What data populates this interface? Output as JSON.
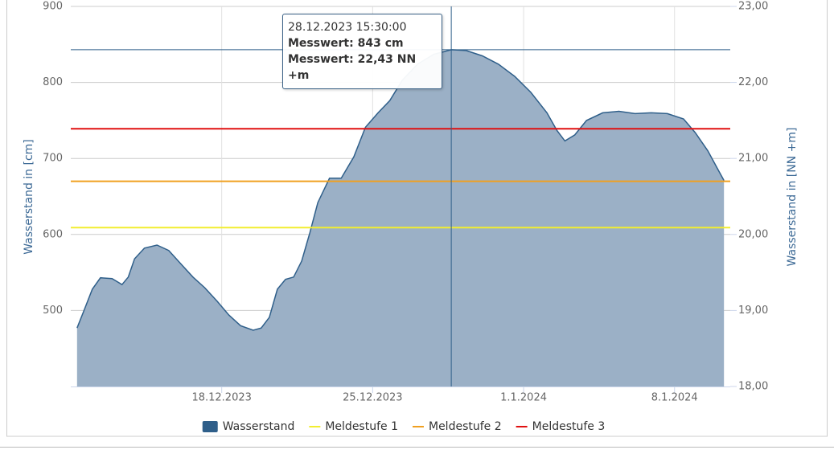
{
  "chart_data": {
    "type": "area",
    "ylabel": "Wasserstand in [cm]",
    "y2label": "Wasserstand in [NN +m]",
    "xlim": [
      "2023-12-11T00:00",
      "2024-01-10T14:00"
    ],
    "xticks": [
      {
        "value": "2023-12-18T00:00",
        "label": "18.12.2023"
      },
      {
        "value": "2023-12-25T00:00",
        "label": "25.12.2023"
      },
      {
        "value": "2024-01-01T00:00",
        "label": "1.1.2024"
      },
      {
        "value": "2024-01-08T00:00",
        "label": "8.1.2024"
      }
    ],
    "ylim": [
      400,
      900
    ],
    "yticks": [
      500,
      600,
      700,
      800,
      900
    ],
    "y2lim": [
      18,
      23
    ],
    "y2ticks": [
      {
        "value": 18,
        "label": "18,00"
      },
      {
        "value": 19,
        "label": "19,00"
      },
      {
        "value": 20,
        "label": "20,00"
      },
      {
        "value": 21,
        "label": "21,00"
      },
      {
        "value": 22,
        "label": "22,00"
      },
      {
        "value": 23,
        "label": "23,00"
      }
    ],
    "grid": true,
    "series": [
      {
        "name": "Wasserstand",
        "color": "#2f5f8a",
        "fill": "#9bb0c6",
        "x": [
          "2023-12-11T07:00",
          "2023-12-11T15:00",
          "2023-12-12T00:00",
          "2023-12-12T09:00",
          "2023-12-12T22:00",
          "2023-12-13T09:00",
          "2023-12-13T16:00",
          "2023-12-13T23:00",
          "2023-12-14T10:00",
          "2023-12-15T00:00",
          "2023-12-15T13:00",
          "2023-12-16T02:00",
          "2023-12-16T16:00",
          "2023-12-17T05:00",
          "2023-12-17T19:00",
          "2023-12-18T08:00",
          "2023-12-18T21:00",
          "2023-12-19T11:00",
          "2023-12-19T20:00",
          "2023-12-20T05:00",
          "2023-12-20T14:00",
          "2023-12-20T23:00",
          "2023-12-21T08:00",
          "2023-12-21T17:00",
          "2023-12-22T02:00",
          "2023-12-22T11:00",
          "2023-12-23T00:00",
          "2023-12-23T13:00",
          "2023-12-24T03:00",
          "2023-12-24T16:00",
          "2023-12-25T06:00",
          "2023-12-25T19:00",
          "2023-12-26T09:00",
          "2023-12-27T02:00",
          "2023-12-27T20:00",
          "2023-12-28T15:30",
          "2023-12-29T08:00",
          "2023-12-30T02:00",
          "2023-12-30T20:00",
          "2023-12-31T14:00",
          "2024-01-01T08:00",
          "2024-01-02T02:00",
          "2024-01-02T13:00",
          "2024-01-02T22:00",
          "2024-01-03T09:00",
          "2024-01-03T22:00",
          "2024-01-04T16:00",
          "2024-01-05T10:00",
          "2024-01-06T04:00",
          "2024-01-06T22:00",
          "2024-01-07T16:00",
          "2024-01-08T10:00",
          "2024-01-08T23:00",
          "2024-01-09T13:00",
          "2024-01-10T00:00",
          "2024-01-10T07:00"
        ],
        "values": [
          477,
          501,
          528,
          543,
          542,
          534,
          544,
          568,
          582,
          586,
          579,
          562,
          544,
          530,
          512,
          494,
          480,
          474,
          477,
          491,
          528,
          541,
          544,
          565,
          602,
          642,
          674,
          674,
          702,
          741,
          760,
          776,
          803,
          824,
          837,
          843,
          842,
          835,
          824,
          808,
          787,
          760,
          737,
          723,
          731,
          750,
          760,
          762,
          759,
          760,
          759,
          752,
          734,
          710,
          686,
          671
        ]
      }
    ],
    "thresholds": [
      {
        "name": "Meldestufe 1",
        "color": "#f2ee30",
        "value": 609
      },
      {
        "name": "Meldestufe 2",
        "color": "#f0a020",
        "value": 670
      },
      {
        "name": "Meldestufe 3",
        "color": "#e01010",
        "value": 739
      }
    ],
    "tooltip": {
      "title": "28.12.2023 15:30:00",
      "lines": [
        "Messwert: 843 cm",
        "Messwert: 22,43 NN +m"
      ]
    }
  }
}
